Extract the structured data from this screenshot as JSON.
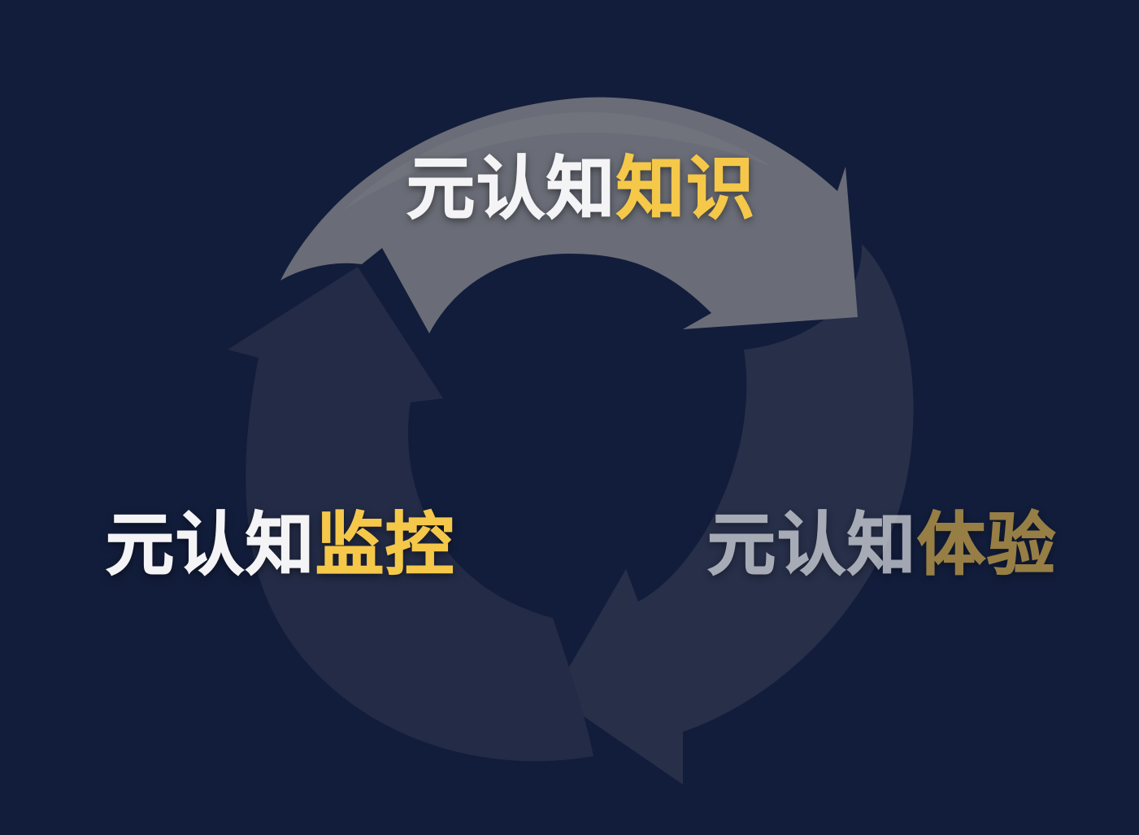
{
  "colors": {
    "background": "#121d3b",
    "text_white": "#f4f4f6",
    "text_accent": "#f5c84a",
    "arrow_active": "#6a6d78",
    "arrow_faded": "#262f4a"
  },
  "cycle": {
    "top": {
      "prefix": "元认知",
      "suffix": "知识"
    },
    "left": {
      "prefix": "元认知",
      "suffix": "监控"
    },
    "right": {
      "prefix": "元认知",
      "suffix": "体验"
    }
  }
}
